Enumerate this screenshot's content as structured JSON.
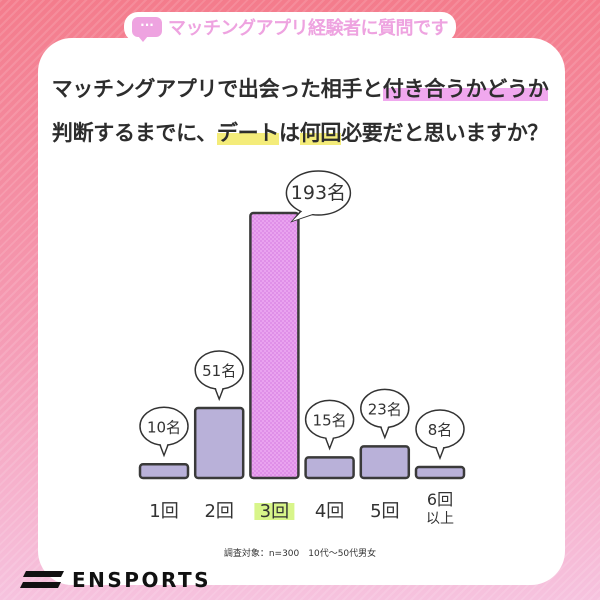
{
  "header": {
    "tag": "マッチングアプリ経験者に質問です",
    "tag_icon": "chat-bubble-icon"
  },
  "question": {
    "line1_a": "マッチングアプリで出会った相手と",
    "line1_b": "付き合うかどうか",
    "line2_a": "判断するまでに、",
    "line2_b": "デート",
    "line2_c": "は",
    "line2_d": "何回",
    "line2_e": "必要だと思いますか？"
  },
  "chart_data": {
    "type": "bar",
    "categories": [
      "1回",
      "2回",
      "3回",
      "4回",
      "5回",
      "6回以上"
    ],
    "values": [
      10,
      51,
      193,
      15,
      23,
      8
    ],
    "data_labels": [
      "10名",
      "51名",
      "193名",
      "15名",
      "23名",
      "8名"
    ],
    "highlight_index": 2,
    "colors": {
      "bar": "#b9b1d9",
      "highlight": "#e9a3ef",
      "outline": "#3a3a3a",
      "label_highlight": "#d8f58a"
    }
  },
  "footnote": "調査対象：n=300　10代〜50代男女",
  "brand": {
    "name": "ENSPORTS"
  }
}
